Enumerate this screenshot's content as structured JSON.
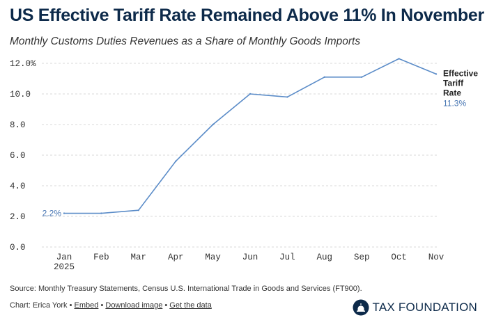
{
  "header": {
    "title": "US Effective Tariff Rate Remained Above 11% In November",
    "subtitle": "Monthly Customs Duties Revenues as a Share of Monthly Goods Imports"
  },
  "chart_data": {
    "type": "line",
    "title": "US Effective Tariff Rate Remained Above 11% In November",
    "subtitle": "Monthly Customs Duties Revenues as a Share of Monthly Goods Imports",
    "categories": [
      "Jan",
      "Feb",
      "Mar",
      "Apr",
      "May",
      "Jun",
      "Jul",
      "Aug",
      "Sep",
      "Oct",
      "Nov"
    ],
    "year_label": "2025",
    "y_ticks": [
      "0.0",
      "2.0",
      "4.0",
      "6.0",
      "8.0",
      "10.0",
      "12.0%"
    ],
    "ylim": [
      0,
      12
    ],
    "series": [
      {
        "name": "Effective Tariff Rate",
        "values": [
          2.2,
          2.2,
          2.4,
          5.6,
          8.0,
          10.0,
          9.8,
          11.1,
          11.1,
          12.3,
          11.3
        ],
        "color": "#5b8cc8"
      }
    ],
    "start_label": "2.2%",
    "end_label_lines": [
      "Effective",
      "Tariff",
      "Rate"
    ],
    "end_value_label": "11.3%",
    "grid": true,
    "gridline_color": "#d9d9d9"
  },
  "footer": {
    "source": "Source: Monthly Treasury Statements, Census U.S. International Trade in Goods and Services (FT900).",
    "credit_prefix": "Chart: Erica York",
    "embed": "Embed",
    "download": "Download image",
    "get_data": "Get the data",
    "brand": "TAX FOUNDATION"
  },
  "colors": {
    "title": "#0d2a4a",
    "line": "#5b8cc8"
  }
}
